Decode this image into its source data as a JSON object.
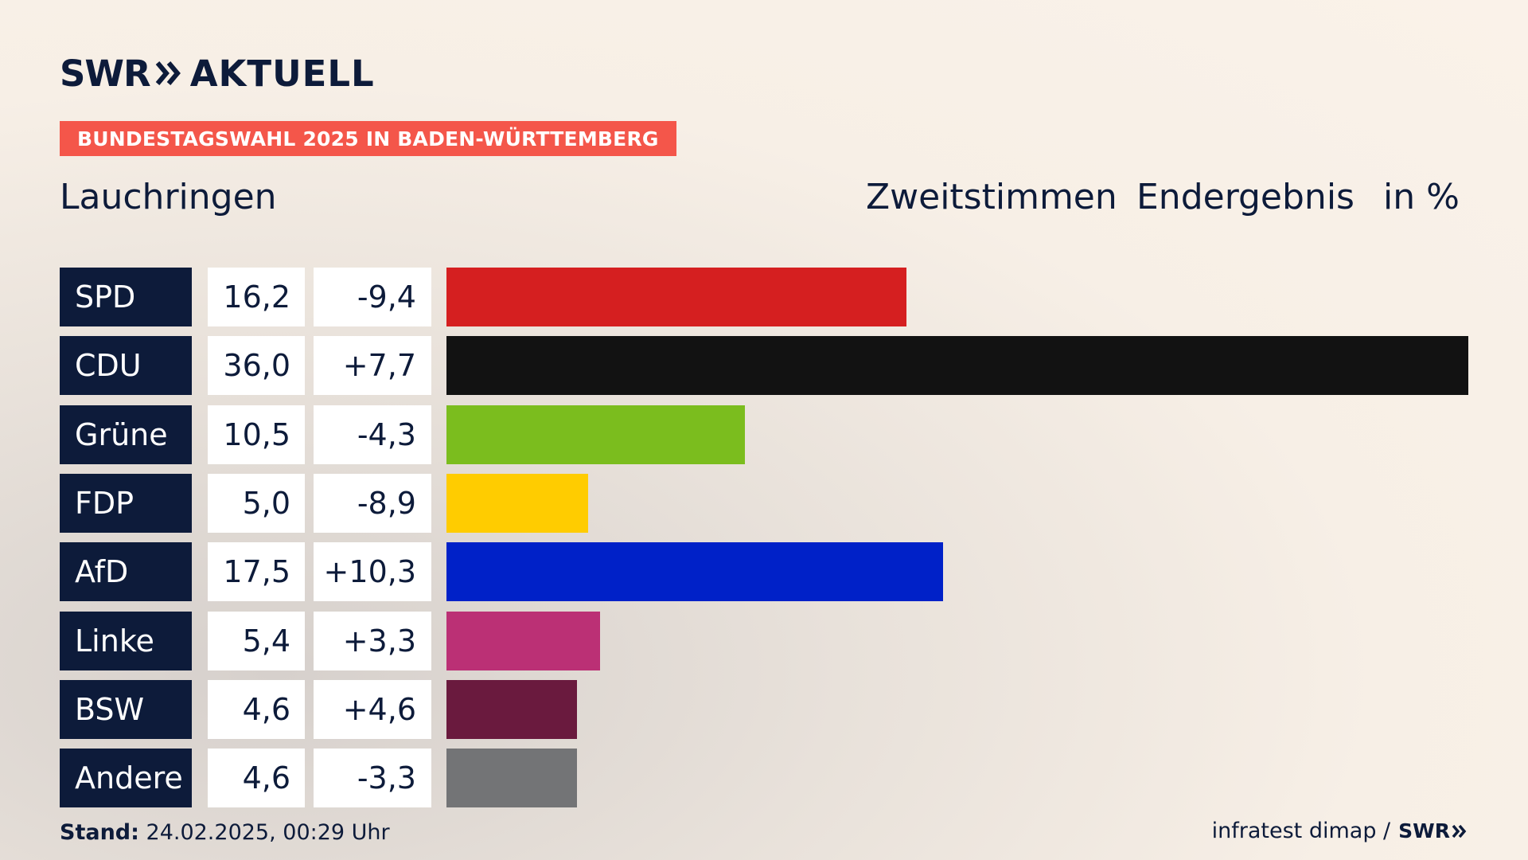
{
  "brand": {
    "swr": "SWR",
    "aktuell": "AKTUELL"
  },
  "banner": "BUNDESTAGSWAHL 2025 IN BADEN-WÜRTTEMBERG",
  "place": "Lauchringen",
  "headers": {
    "vote_type": "Zweitstimmen",
    "status": "Endergebnis",
    "unit": "in %"
  },
  "colors": {
    "navy": "#0d1b3a",
    "banner": "#f4564a"
  },
  "chart_data": {
    "type": "bar",
    "orientation": "horizontal",
    "categories": [
      "SPD",
      "CDU",
      "Grüne",
      "FDP",
      "AfD",
      "Linke",
      "BSW",
      "Andere"
    ],
    "values": [
      16.2,
      36.0,
      10.5,
      5.0,
      17.5,
      5.4,
      4.6,
      4.6
    ],
    "value_labels": [
      "16,2",
      "36,0",
      "10,5",
      "5,0",
      "17,5",
      "5,4",
      "4,6",
      "4,6"
    ],
    "changes": [
      -9.4,
      7.7,
      -4.3,
      -8.9,
      10.3,
      3.3,
      4.6,
      -3.3
    ],
    "change_labels": [
      "-9,4",
      "+7,7",
      "-4,3",
      "-8,9",
      "+10,3",
      "+3,3",
      "+4,6",
      "-3,3"
    ],
    "colors": [
      "#d51f20",
      "#121212",
      "#7bbd1e",
      "#ffcc00",
      "#0021c8",
      "#bb3075",
      "#6a1a3e",
      "#737476"
    ],
    "xlim": [
      0,
      36.0
    ],
    "grid": false
  },
  "footer": {
    "stand_label": "Stand:",
    "stand_value": "24.02.2025, 00:29 Uhr",
    "source": "infratest dimap /",
    "source_brand": "SWR"
  }
}
